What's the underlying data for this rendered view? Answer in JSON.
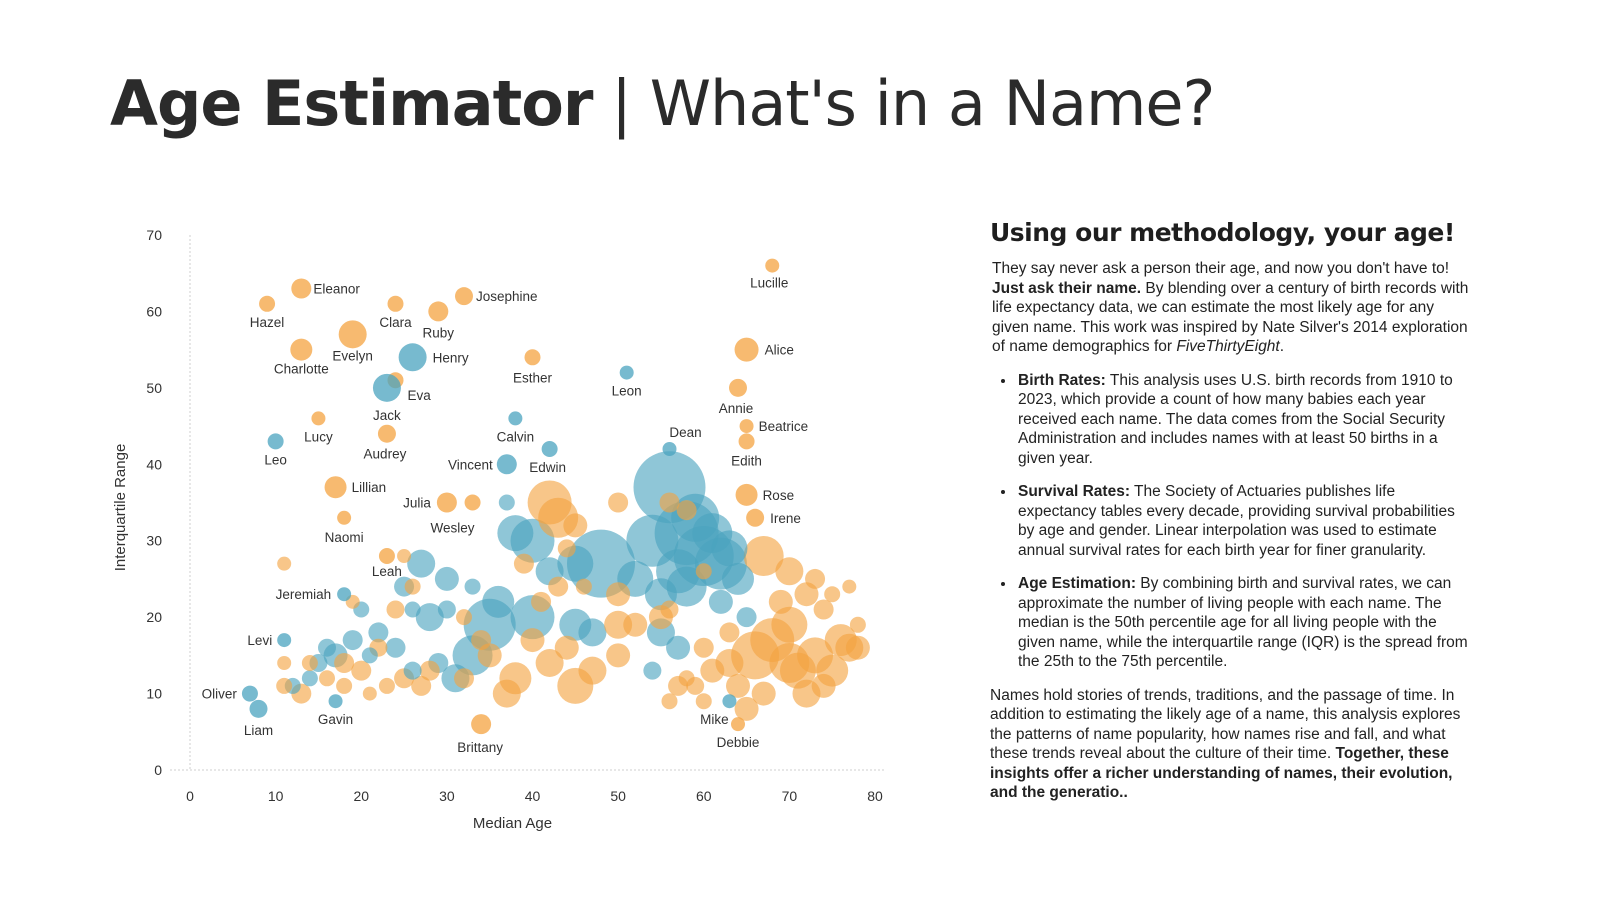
{
  "title": {
    "bold": "Age Estimator",
    "separator": " | ",
    "rest": "What's in a Name?"
  },
  "side": {
    "heading": "Using our methodology, your age!",
    "intro_1": "They say never ask a person their age, and now you don't have to! ",
    "intro_bold": "Just ask their name.",
    "intro_2": " By blending over a century of birth records with life expectancy data, we can estimate the most likely age for any given name. This work was inspired by Nate Silver's 2014 exploration of name demographics for ",
    "intro_italic": "FiveThirtyEight",
    "intro_3": ".",
    "bullets": [
      {
        "label": "Birth Rates:",
        "text": " This analysis uses U.S. birth records from 1910 to 2023, which provide a count of how many babies each year received each name. The data comes from the Social Security Administration and includes names with at least 50 births in a given year."
      },
      {
        "label": "Survival Rates:",
        "text": " The Society of Actuaries publishes life expectancy tables every decade, providing survival probabilities by age and gender. Linear interpolation was used to estimate annual survival rates for each birth year for finer granularity."
      },
      {
        "label": "Age Estimation:",
        "text": " By combining birth and survival rates, we can approximate the number of living people with each name. The median is the 50th percentile age for all living people with the given name, while the interquartile range (IQR) is the spread from the 25th to the 75th percentile."
      }
    ],
    "closing": "Names hold stories of trends, traditions, and the passage of time. In addition to estimating the likely age of a name, this analysis explores the patterns of name popularity, how names rise and fall, and what these trends reveal about the culture of their time. ",
    "closing_bold": "Together, these insights offer a richer understanding of names, their evolution, and the generatio.."
  },
  "colors": {
    "female": "#f4a340",
    "male": "#4aa3bf"
  },
  "chart_data": {
    "type": "scatter",
    "xlabel": "Median Age",
    "ylabel": "Interquartile Range",
    "xlim": [
      0,
      80
    ],
    "ylim": [
      0,
      70
    ],
    "xticks": [
      "0",
      "10",
      "20",
      "30",
      "40",
      "50",
      "60",
      "70",
      "80"
    ],
    "yticks": [
      "0",
      "10",
      "20",
      "30",
      "40",
      "50",
      "60",
      "70"
    ],
    "grid": false,
    "legend": "none",
    "labeled_points": [
      {
        "name": "Lucille",
        "x": 68,
        "y": 66,
        "g": "f",
        "s": 7
      },
      {
        "name": "Eleanor",
        "x": 13,
        "y": 63,
        "g": "f",
        "s": 10
      },
      {
        "name": "Josephine",
        "x": 32,
        "y": 62,
        "g": "f",
        "s": 9
      },
      {
        "name": "Hazel",
        "x": 9,
        "y": 61,
        "g": "f",
        "s": 8
      },
      {
        "name": "Clara",
        "x": 24,
        "y": 61,
        "g": "f",
        "s": 8
      },
      {
        "name": "Ruby",
        "x": 29,
        "y": 60,
        "g": "f",
        "s": 10
      },
      {
        "name": "Evelyn",
        "x": 19,
        "y": 57,
        "g": "f",
        "s": 14
      },
      {
        "name": "Charlotte",
        "x": 13,
        "y": 55,
        "g": "f",
        "s": 11
      },
      {
        "name": "Henry",
        "x": 26,
        "y": 54,
        "g": "m",
        "s": 14
      },
      {
        "name": "Alice",
        "x": 65,
        "y": 55,
        "g": "f",
        "s": 12
      },
      {
        "name": "Esther",
        "x": 40,
        "y": 54,
        "g": "f",
        "s": 8
      },
      {
        "name": "Leon",
        "x": 51,
        "y": 52,
        "g": "m",
        "s": 7
      },
      {
        "name": "Eva",
        "x": 24,
        "y": 51,
        "g": "f",
        "s": 8
      },
      {
        "name": "Jack",
        "x": 23,
        "y": 50,
        "g": "m",
        "s": 14
      },
      {
        "name": "Annie",
        "x": 64,
        "y": 50,
        "g": "f",
        "s": 9
      },
      {
        "name": "Calvin",
        "x": 38,
        "y": 46,
        "g": "m",
        "s": 7
      },
      {
        "name": "Lucy",
        "x": 15,
        "y": 46,
        "g": "f",
        "s": 7
      },
      {
        "name": "Beatrice",
        "x": 65,
        "y": 45,
        "g": "f",
        "s": 7
      },
      {
        "name": "Audrey",
        "x": 23,
        "y": 44,
        "g": "f",
        "s": 9
      },
      {
        "name": "Leo",
        "x": 10,
        "y": 43,
        "g": "m",
        "s": 8
      },
      {
        "name": "Edith",
        "x": 65,
        "y": 43,
        "g": "f",
        "s": 8
      },
      {
        "name": "Dean",
        "x": 56,
        "y": 42,
        "g": "m",
        "s": 7
      },
      {
        "name": "Edwin",
        "x": 42,
        "y": 42,
        "g": "m",
        "s": 8
      },
      {
        "name": "Vincent",
        "x": 37,
        "y": 40,
        "g": "m",
        "s": 10
      },
      {
        "name": "Lillian",
        "x": 17,
        "y": 37,
        "g": "f",
        "s": 11
      },
      {
        "name": "Rose",
        "x": 65,
        "y": 36,
        "g": "f",
        "s": 11
      },
      {
        "name": "Julia",
        "x": 30,
        "y": 35,
        "g": "f",
        "s": 10
      },
      {
        "name": "Irene",
        "x": 66,
        "y": 33,
        "g": "f",
        "s": 9
      },
      {
        "name": "Naomi",
        "x": 18,
        "y": 33,
        "g": "f",
        "s": 7
      },
      {
        "name": "Wesley",
        "x": 33,
        "y": 35,
        "g": "f",
        "s": 8
      },
      {
        "name": "Leah",
        "x": 23,
        "y": 28,
        "g": "f",
        "s": 8
      },
      {
        "name": "Jeremiah",
        "x": 18,
        "y": 23,
        "g": "m",
        "s": 7
      },
      {
        "name": "Levi",
        "x": 11,
        "y": 17,
        "g": "m",
        "s": 7
      },
      {
        "name": "Oliver",
        "x": 7,
        "y": 10,
        "g": "m",
        "s": 8
      },
      {
        "name": "Liam",
        "x": 8,
        "y": 8,
        "g": "m",
        "s": 9
      },
      {
        "name": "Gavin",
        "x": 17,
        "y": 9,
        "g": "m",
        "s": 7
      },
      {
        "name": "Mike",
        "x": 63,
        "y": 9,
        "g": "m",
        "s": 7
      },
      {
        "name": "Debbie",
        "x": 64,
        "y": 6,
        "g": "f",
        "s": 7
      },
      {
        "name": "Brittany",
        "x": 34,
        "y": 6,
        "g": "f",
        "s": 10
      }
    ],
    "cluster_points": [
      {
        "x": 56,
        "y": 37,
        "g": "m",
        "s": 36
      },
      {
        "x": 58,
        "y": 31,
        "g": "m",
        "s": 32
      },
      {
        "x": 60,
        "y": 28,
        "g": "m",
        "s": 30
      },
      {
        "x": 62,
        "y": 27,
        "g": "m",
        "s": 26
      },
      {
        "x": 54,
        "y": 30,
        "g": "m",
        "s": 26
      },
      {
        "x": 48,
        "y": 27,
        "g": "m",
        "s": 34
      },
      {
        "x": 57,
        "y": 26,
        "g": "m",
        "s": 22
      },
      {
        "x": 59,
        "y": 33,
        "g": "m",
        "s": 24
      },
      {
        "x": 61,
        "y": 31,
        "g": "m",
        "s": 20
      },
      {
        "x": 52,
        "y": 25,
        "g": "m",
        "s": 18
      },
      {
        "x": 63,
        "y": 29,
        "g": "m",
        "s": 18
      },
      {
        "x": 55,
        "y": 23,
        "g": "m",
        "s": 16
      },
      {
        "x": 58,
        "y": 24,
        "g": "m",
        "s": 20
      },
      {
        "x": 64,
        "y": 25,
        "g": "m",
        "s": 16
      },
      {
        "x": 40,
        "y": 30,
        "g": "m",
        "s": 22
      },
      {
        "x": 38,
        "y": 31,
        "g": "m",
        "s": 18
      },
      {
        "x": 45,
        "y": 27,
        "g": "m",
        "s": 18
      },
      {
        "x": 42,
        "y": 26,
        "g": "m",
        "s": 14
      },
      {
        "x": 40,
        "y": 20,
        "g": "m",
        "s": 22
      },
      {
        "x": 35,
        "y": 19,
        "g": "m",
        "s": 26
      },
      {
        "x": 33,
        "y": 15,
        "g": "m",
        "s": 20
      },
      {
        "x": 31,
        "y": 12,
        "g": "m",
        "s": 14
      },
      {
        "x": 36,
        "y": 22,
        "g": "m",
        "s": 16
      },
      {
        "x": 28,
        "y": 20,
        "g": "m",
        "s": 14
      },
      {
        "x": 25,
        "y": 24,
        "g": "m",
        "s": 10
      },
      {
        "x": 27,
        "y": 27,
        "g": "m",
        "s": 14
      },
      {
        "x": 30,
        "y": 25,
        "g": "m",
        "s": 12
      },
      {
        "x": 22,
        "y": 18,
        "g": "m",
        "s": 10
      },
      {
        "x": 19,
        "y": 17,
        "g": "m",
        "s": 10
      },
      {
        "x": 17,
        "y": 15,
        "g": "m",
        "s": 12
      },
      {
        "x": 15,
        "y": 14,
        "g": "m",
        "s": 9
      },
      {
        "x": 14,
        "y": 12,
        "g": "m",
        "s": 8
      },
      {
        "x": 12,
        "y": 11,
        "g": "m",
        "s": 8
      },
      {
        "x": 24,
        "y": 16,
        "g": "m",
        "s": 10
      },
      {
        "x": 21,
        "y": 15,
        "g": "m",
        "s": 8
      },
      {
        "x": 45,
        "y": 19,
        "g": "m",
        "s": 16
      },
      {
        "x": 47,
        "y": 18,
        "g": "m",
        "s": 14
      },
      {
        "x": 55,
        "y": 18,
        "g": "m",
        "s": 14
      },
      {
        "x": 57,
        "y": 16,
        "g": "m",
        "s": 12
      },
      {
        "x": 54,
        "y": 13,
        "g": "m",
        "s": 9
      },
      {
        "x": 62,
        "y": 22,
        "g": "m",
        "s": 12
      },
      {
        "x": 65,
        "y": 20,
        "g": "m",
        "s": 10
      },
      {
        "x": 29,
        "y": 14,
        "g": "m",
        "s": 10
      },
      {
        "x": 26,
        "y": 13,
        "g": "m",
        "s": 9
      },
      {
        "x": 37,
        "y": 35,
        "g": "m",
        "s": 8
      },
      {
        "x": 20,
        "y": 21,
        "g": "m",
        "s": 8
      },
      {
        "x": 30,
        "y": 21,
        "g": "m",
        "s": 9
      },
      {
        "x": 26,
        "y": 21,
        "g": "m",
        "s": 8
      },
      {
        "x": 33,
        "y": 24,
        "g": "m",
        "s": 8
      },
      {
        "x": 16,
        "y": 16,
        "g": "m",
        "s": 9
      },
      {
        "x": 42,
        "y": 35,
        "g": "f",
        "s": 22
      },
      {
        "x": 43,
        "y": 33,
        "g": "f",
        "s": 20
      },
      {
        "x": 45,
        "y": 32,
        "g": "f",
        "s": 12
      },
      {
        "x": 50,
        "y": 35,
        "g": "f",
        "s": 10
      },
      {
        "x": 56,
        "y": 35,
        "g": "f",
        "s": 10
      },
      {
        "x": 58,
        "y": 34,
        "g": "f",
        "s": 10
      },
      {
        "x": 67,
        "y": 28,
        "g": "f",
        "s": 20
      },
      {
        "x": 70,
        "y": 26,
        "g": "f",
        "s": 14
      },
      {
        "x": 72,
        "y": 23,
        "g": "f",
        "s": 12
      },
      {
        "x": 74,
        "y": 21,
        "g": "f",
        "s": 10
      },
      {
        "x": 70,
        "y": 19,
        "g": "f",
        "s": 18
      },
      {
        "x": 68,
        "y": 17,
        "g": "f",
        "s": 22
      },
      {
        "x": 66,
        "y": 15,
        "g": "f",
        "s": 24
      },
      {
        "x": 70,
        "y": 14,
        "g": "f",
        "s": 20
      },
      {
        "x": 73,
        "y": 15,
        "g": "f",
        "s": 18
      },
      {
        "x": 76,
        "y": 17,
        "g": "f",
        "s": 16
      },
      {
        "x": 77,
        "y": 16,
        "g": "f",
        "s": 14
      },
      {
        "x": 75,
        "y": 13,
        "g": "f",
        "s": 16
      },
      {
        "x": 71,
        "y": 13,
        "g": "f",
        "s": 18
      },
      {
        "x": 63,
        "y": 14,
        "g": "f",
        "s": 14
      },
      {
        "x": 61,
        "y": 13,
        "g": "f",
        "s": 12
      },
      {
        "x": 60,
        "y": 16,
        "g": "f",
        "s": 10
      },
      {
        "x": 64,
        "y": 11,
        "g": "f",
        "s": 12
      },
      {
        "x": 67,
        "y": 10,
        "g": "f",
        "s": 12
      },
      {
        "x": 65,
        "y": 8,
        "g": "f",
        "s": 12
      },
      {
        "x": 57,
        "y": 11,
        "g": "f",
        "s": 10
      },
      {
        "x": 58,
        "y": 12,
        "g": "f",
        "s": 8
      },
      {
        "x": 56,
        "y": 9,
        "g": "f",
        "s": 8
      },
      {
        "x": 52,
        "y": 19,
        "g": "f",
        "s": 12
      },
      {
        "x": 50,
        "y": 15,
        "g": "f",
        "s": 12
      },
      {
        "x": 50,
        "y": 19,
        "g": "f",
        "s": 14
      },
      {
        "x": 47,
        "y": 13,
        "g": "f",
        "s": 14
      },
      {
        "x": 45,
        "y": 11,
        "g": "f",
        "s": 18
      },
      {
        "x": 42,
        "y": 14,
        "g": "f",
        "s": 14
      },
      {
        "x": 44,
        "y": 16,
        "g": "f",
        "s": 12
      },
      {
        "x": 38,
        "y": 12,
        "g": "f",
        "s": 16
      },
      {
        "x": 37,
        "y": 10,
        "g": "f",
        "s": 14
      },
      {
        "x": 35,
        "y": 15,
        "g": "f",
        "s": 12
      },
      {
        "x": 40,
        "y": 17,
        "g": "f",
        "s": 12
      },
      {
        "x": 41,
        "y": 22,
        "g": "f",
        "s": 10
      },
      {
        "x": 43,
        "y": 24,
        "g": "f",
        "s": 10
      },
      {
        "x": 50,
        "y": 23,
        "g": "f",
        "s": 12
      },
      {
        "x": 28,
        "y": 13,
        "g": "f",
        "s": 10
      },
      {
        "x": 27,
        "y": 11,
        "g": "f",
        "s": 10
      },
      {
        "x": 25,
        "y": 12,
        "g": "f",
        "s": 10
      },
      {
        "x": 23,
        "y": 11,
        "g": "f",
        "s": 8
      },
      {
        "x": 20,
        "y": 13,
        "g": "f",
        "s": 10
      },
      {
        "x": 18,
        "y": 14,
        "g": "f",
        "s": 10
      },
      {
        "x": 16,
        "y": 12,
        "g": "f",
        "s": 8
      },
      {
        "x": 13,
        "y": 10,
        "g": "f",
        "s": 10
      },
      {
        "x": 11,
        "y": 11,
        "g": "f",
        "s": 8
      },
      {
        "x": 18,
        "y": 11,
        "g": "f",
        "s": 8
      },
      {
        "x": 21,
        "y": 10,
        "g": "f",
        "s": 7
      },
      {
        "x": 11,
        "y": 14,
        "g": "f",
        "s": 7
      },
      {
        "x": 14,
        "y": 14,
        "g": "f",
        "s": 8
      },
      {
        "x": 22,
        "y": 16,
        "g": "f",
        "s": 9
      },
      {
        "x": 24,
        "y": 21,
        "g": "f",
        "s": 9
      },
      {
        "x": 25,
        "y": 28,
        "g": "f",
        "s": 7
      },
      {
        "x": 26,
        "y": 24,
        "g": "f",
        "s": 8
      },
      {
        "x": 19,
        "y": 22,
        "g": "f",
        "s": 7
      },
      {
        "x": 11,
        "y": 27,
        "g": "f",
        "s": 7
      },
      {
        "x": 34,
        "y": 17,
        "g": "f",
        "s": 10
      },
      {
        "x": 32,
        "y": 20,
        "g": "f",
        "s": 8
      },
      {
        "x": 32,
        "y": 12,
        "g": "f",
        "s": 10
      },
      {
        "x": 60,
        "y": 9,
        "g": "f",
        "s": 8
      },
      {
        "x": 59,
        "y": 11,
        "g": "f",
        "s": 9
      },
      {
        "x": 69,
        "y": 22,
        "g": "f",
        "s": 12
      },
      {
        "x": 73,
        "y": 25,
        "g": "f",
        "s": 10
      },
      {
        "x": 75,
        "y": 23,
        "g": "f",
        "s": 8
      },
      {
        "x": 78,
        "y": 19,
        "g": "f",
        "s": 8
      },
      {
        "x": 77,
        "y": 24,
        "g": "f",
        "s": 7
      },
      {
        "x": 72,
        "y": 10,
        "g": "f",
        "s": 14
      },
      {
        "x": 74,
        "y": 11,
        "g": "f",
        "s": 12
      },
      {
        "x": 78,
        "y": 16,
        "g": "f",
        "s": 12
      },
      {
        "x": 63,
        "y": 18,
        "g": "f",
        "s": 10
      },
      {
        "x": 46,
        "y": 24,
        "g": "f",
        "s": 8
      },
      {
        "x": 39,
        "y": 27,
        "g": "f",
        "s": 10
      },
      {
        "x": 44,
        "y": 29,
        "g": "f",
        "s": 9
      },
      {
        "x": 60,
        "y": 26,
        "g": "f",
        "s": 8
      },
      {
        "x": 55,
        "y": 20,
        "g": "f",
        "s": 12
      },
      {
        "x": 56,
        "y": 21,
        "g": "f",
        "s": 9
      }
    ]
  }
}
